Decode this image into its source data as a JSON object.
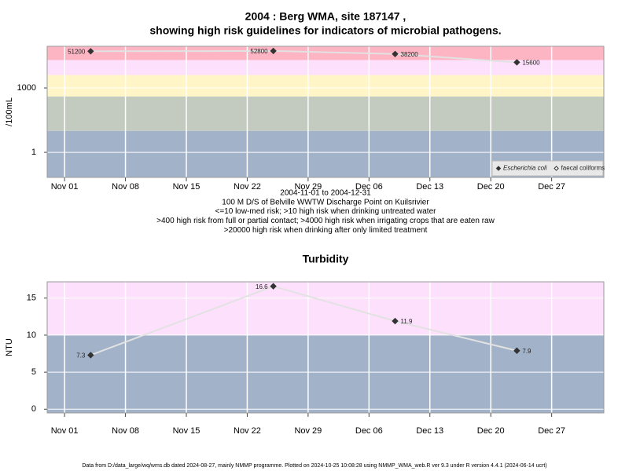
{
  "chart_data": [
    {
      "type": "line",
      "title": "2004 : Berg WMA, site 187147 ,",
      "subtitle": "showing high risk guidelines for indicators of microbial pathogens.",
      "ylabel": "/100mL",
      "notes": [
        "2004-11-01 to 2004-12-31",
        "100 M D/S of Belville WWTW Discharge Point on Kuilsrivier",
        "<=10 low-med risk; >10 high risk when drinking untreated water",
        ">400 high risk from full or partial contact; >4000 high risk when irrigating crops that are eaten raw",
        ">20000 high risk when drinking after only limited treatment"
      ],
      "x": [
        "2004-11-04",
        "2004-11-25",
        "2004-12-09",
        "2004-12-23"
      ],
      "series": [
        {
          "name": "Escherichia coli",
          "color": "#333333",
          "line_color": "#e2e2e2",
          "marker": "filled",
          "values": [
            51200,
            52800,
            38200,
            15600
          ]
        },
        {
          "name": "faecal coliforms",
          "color": "#333333",
          "line_color": "#e2e2e2",
          "marker": "open",
          "values": [
            null,
            null,
            null,
            null
          ]
        }
      ],
      "log_y": true,
      "ylim": [
        0.068,
        87000
      ],
      "yticks": [
        1,
        1000
      ],
      "xlim": [
        "2004-10-30",
        "2005-01-02"
      ],
      "xticks": [
        {
          "value": "2004-11-01",
          "label": "Nov 01"
        },
        {
          "value": "2004-11-08",
          "label": "Nov 08"
        },
        {
          "value": "2004-11-15",
          "label": "Nov 15"
        },
        {
          "value": "2004-11-22",
          "label": "Nov 22"
        },
        {
          "value": "2004-11-29",
          "label": "Nov 29"
        },
        {
          "value": "2004-12-06",
          "label": "Dec 06"
        },
        {
          "value": "2004-12-13",
          "label": "Dec 13"
        },
        {
          "value": "2004-12-20",
          "label": "Dec 20"
        },
        {
          "value": "2004-12-27",
          "label": "Dec 27"
        }
      ],
      "band_edges": [
        10,
        400,
        4000,
        20000
      ],
      "band_colors": [
        "#a2b2c9",
        "#c3cbc1",
        "#fff5c6",
        "#fde0fb",
        "#fdb5c4"
      ],
      "grid": true,
      "legend": "bottom right"
    },
    {
      "type": "line",
      "title": "Turbidity",
      "ylabel": "NTU",
      "x": [
        "2004-11-04",
        "2004-11-25",
        "2004-12-09",
        "2004-12-23"
      ],
      "values": [
        7.3,
        16.6,
        11.9,
        7.9
      ],
      "color": "#333333",
      "line_color": "#e2e2e2",
      "log_y": false,
      "ylim": [
        -0.5,
        17.2
      ],
      "yticks": [
        0,
        5,
        10,
        15
      ],
      "xlim": [
        "2004-10-30",
        "2005-01-02"
      ],
      "xticks": [
        {
          "value": "2004-11-01",
          "label": "Nov 01"
        },
        {
          "value": "2004-11-08",
          "label": "Nov 08"
        },
        {
          "value": "2004-11-15",
          "label": "Nov 15"
        },
        {
          "value": "2004-11-22",
          "label": "Nov 22"
        },
        {
          "value": "2004-11-29",
          "label": "Nov 29"
        },
        {
          "value": "2004-12-06",
          "label": "Dec 06"
        },
        {
          "value": "2004-12-13",
          "label": "Dec 13"
        },
        {
          "value": "2004-12-20",
          "label": "Dec 20"
        },
        {
          "value": "2004-12-27",
          "label": "Dec 27"
        }
      ],
      "band_edges": [
        10
      ],
      "band_colors": [
        "#a2b2c9",
        "#fde0fb"
      ],
      "grid": true
    }
  ],
  "footer": "Data from D:/data_large/wq/wms.db dated 2024-08-27, mainly NMMP programme. Plotted on 2024-10-25 10:08:28 using NMMP_WMA_web.R ver 9.3 under R version 4.4.1 (2024-06-14 ucrt)"
}
